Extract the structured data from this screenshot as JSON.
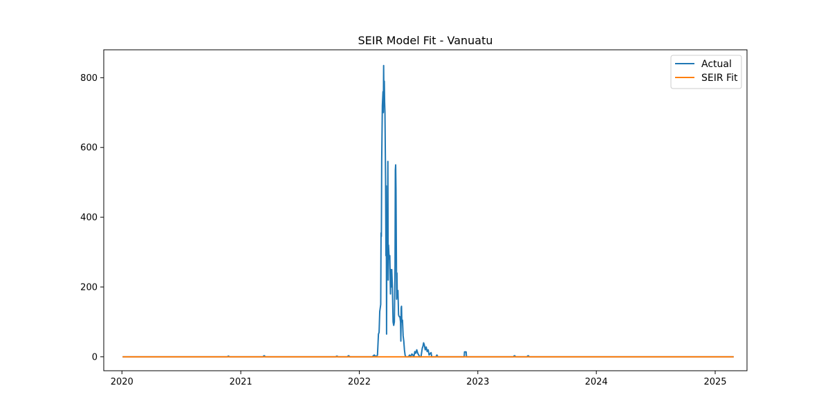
{
  "chart_data": {
    "type": "line",
    "title": "SEIR Model Fit - Vanuatu",
    "xlabel": "",
    "ylabel": "",
    "xlim": [
      "2019-11-06",
      "2025-04-09"
    ],
    "ylim": [
      -40,
      880
    ],
    "x_ticks": [
      "2020",
      "2021",
      "2022",
      "2023",
      "2024",
      "2025"
    ],
    "y_ticks": [
      0,
      200,
      400,
      600,
      800
    ],
    "grid": false,
    "legend": "top-right",
    "series": [
      {
        "name": "Actual",
        "color": "#1f77b4",
        "points": [
          [
            "2020-01-03",
            0
          ],
          [
            "2020-11-20",
            0
          ],
          [
            "2020-11-24",
            2
          ],
          [
            "2020-11-28",
            0
          ],
          [
            "2021-03-10",
            0
          ],
          [
            "2021-03-14",
            3
          ],
          [
            "2021-03-18",
            0
          ],
          [
            "2021-10-20",
            0
          ],
          [
            "2021-10-24",
            2
          ],
          [
            "2021-10-28",
            0
          ],
          [
            "2021-11-25",
            0
          ],
          [
            "2021-11-29",
            3
          ],
          [
            "2021-12-03",
            0
          ],
          [
            "2022-02-10",
            0
          ],
          [
            "2022-02-16",
            5
          ],
          [
            "2022-02-22",
            0
          ],
          [
            "2022-02-26",
            5
          ],
          [
            "2022-03-01",
            65
          ],
          [
            "2022-03-03",
            70
          ],
          [
            "2022-03-05",
            130
          ],
          [
            "2022-03-08",
            150
          ],
          [
            "2022-03-09",
            355
          ],
          [
            "2022-03-10",
            345
          ],
          [
            "2022-03-11",
            560
          ],
          [
            "2022-03-13",
            720
          ],
          [
            "2022-03-15",
            760
          ],
          [
            "2022-03-16",
            700
          ],
          [
            "2022-03-17",
            835
          ],
          [
            "2022-03-18",
            720
          ],
          [
            "2022-03-19",
            790
          ],
          [
            "2022-03-20",
            730
          ],
          [
            "2022-03-21",
            700
          ],
          [
            "2022-03-23",
            500
          ],
          [
            "2022-03-24",
            290
          ],
          [
            "2022-03-25",
            490
          ],
          [
            "2022-03-26",
            65
          ],
          [
            "2022-03-27",
            400
          ],
          [
            "2022-03-28",
            420
          ],
          [
            "2022-03-29",
            300
          ],
          [
            "2022-03-30",
            560
          ],
          [
            "2022-03-31",
            220
          ],
          [
            "2022-04-01",
            320
          ],
          [
            "2022-04-03",
            280
          ],
          [
            "2022-04-05",
            290
          ],
          [
            "2022-04-07",
            180
          ],
          [
            "2022-04-08",
            250
          ],
          [
            "2022-04-09",
            200
          ],
          [
            "2022-04-11",
            250
          ],
          [
            "2022-04-13",
            200
          ],
          [
            "2022-04-15",
            100
          ],
          [
            "2022-04-17",
            90
          ],
          [
            "2022-04-19",
            100
          ],
          [
            "2022-04-21",
            260
          ],
          [
            "2022-04-22",
            535
          ],
          [
            "2022-04-23",
            550
          ],
          [
            "2022-04-24",
            480
          ],
          [
            "2022-04-26",
            165
          ],
          [
            "2022-04-27",
            240
          ],
          [
            "2022-04-28",
            170
          ],
          [
            "2022-04-30",
            190
          ],
          [
            "2022-05-02",
            120
          ],
          [
            "2022-05-04",
            115
          ],
          [
            "2022-05-06",
            115
          ],
          [
            "2022-05-08",
            100
          ],
          [
            "2022-05-09",
            45
          ],
          [
            "2022-05-10",
            140
          ],
          [
            "2022-05-11",
            145
          ],
          [
            "2022-05-12",
            100
          ],
          [
            "2022-05-14",
            105
          ],
          [
            "2022-05-16",
            60
          ],
          [
            "2022-05-18",
            45
          ],
          [
            "2022-05-20",
            20
          ],
          [
            "2022-05-22",
            5
          ],
          [
            "2022-05-24",
            0
          ],
          [
            "2022-06-01",
            0
          ],
          [
            "2022-06-05",
            5
          ],
          [
            "2022-06-08",
            0
          ],
          [
            "2022-06-12",
            8
          ],
          [
            "2022-06-15",
            5
          ],
          [
            "2022-06-18",
            0
          ],
          [
            "2022-06-21",
            15
          ],
          [
            "2022-06-24",
            10
          ],
          [
            "2022-06-27",
            20
          ],
          [
            "2022-06-30",
            10
          ],
          [
            "2022-07-03",
            5
          ],
          [
            "2022-07-06",
            0
          ],
          [
            "2022-07-10",
            0
          ],
          [
            "2022-07-14",
            25
          ],
          [
            "2022-07-16",
            30
          ],
          [
            "2022-07-18",
            40
          ],
          [
            "2022-07-20",
            35
          ],
          [
            "2022-07-23",
            20
          ],
          [
            "2022-07-26",
            28
          ],
          [
            "2022-07-29",
            15
          ],
          [
            "2022-08-01",
            20
          ],
          [
            "2022-08-04",
            5
          ],
          [
            "2022-08-08",
            10
          ],
          [
            "2022-08-10",
            12
          ],
          [
            "2022-08-12",
            0
          ],
          [
            "2022-08-25",
            0
          ],
          [
            "2022-08-28",
            5
          ],
          [
            "2022-08-31",
            0
          ],
          [
            "2022-11-20",
            0
          ],
          [
            "2022-11-21",
            14
          ],
          [
            "2022-11-26",
            14
          ],
          [
            "2022-11-27",
            0
          ],
          [
            "2023-04-20",
            0
          ],
          [
            "2023-04-24",
            3
          ],
          [
            "2023-04-28",
            0
          ],
          [
            "2023-06-01",
            0
          ],
          [
            "2023-06-05",
            3
          ],
          [
            "2023-06-09",
            0
          ],
          [
            "2025-02-27",
            0
          ]
        ]
      },
      {
        "name": "SEIR Fit",
        "color": "#ff7f0e",
        "points": [
          [
            "2020-01-03",
            0
          ],
          [
            "2025-02-27",
            0
          ]
        ]
      }
    ]
  }
}
